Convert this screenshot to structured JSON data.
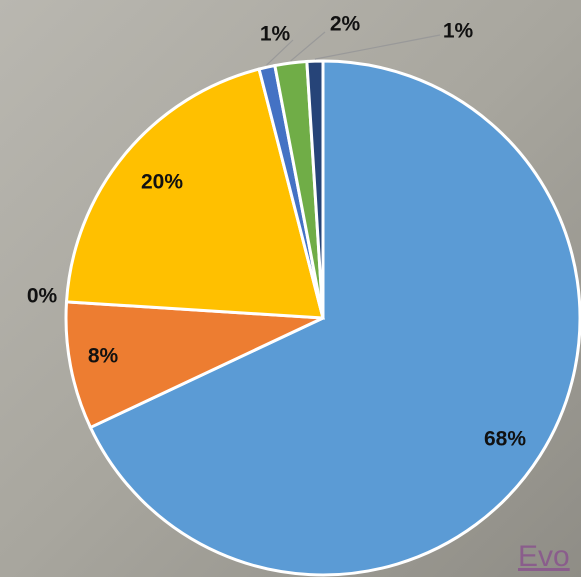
{
  "chart_data": {
    "type": "pie",
    "values": [
      68,
      8,
      0,
      20,
      1,
      2,
      1
    ],
    "value_labels": [
      "68%",
      "8%",
      "0%",
      "20%",
      "1%",
      "2%",
      "1%"
    ],
    "colors": [
      "#5b9bd5",
      "#ed7d31",
      "#a5a5a5",
      "#ffc000",
      "#4472c4",
      "#70ad47",
      "#264478"
    ]
  },
  "link_text": "Evo"
}
